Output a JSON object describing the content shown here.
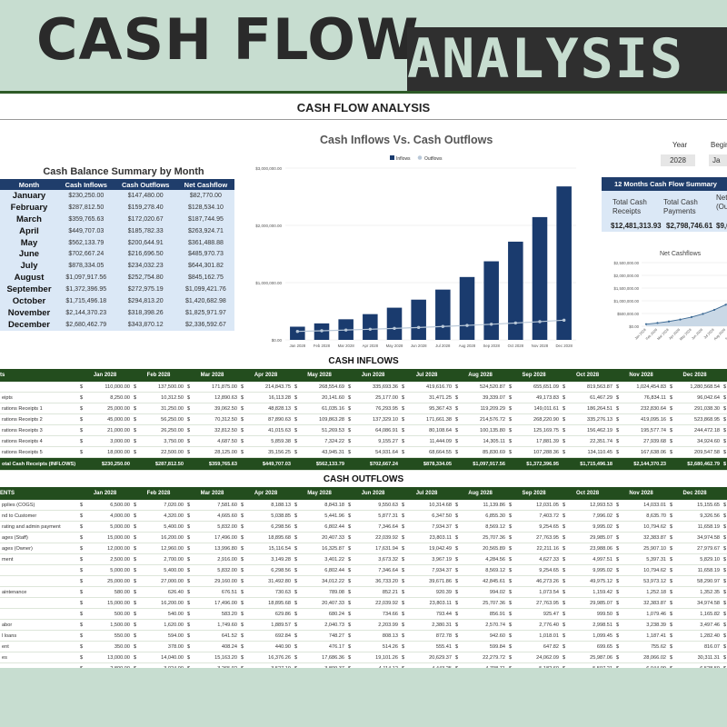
{
  "banner": {
    "title_part1": "CASH FLOW",
    "title_part2": "ANALYSIS"
  },
  "sheet": {
    "title": "CASH FLOW ANALYSIS"
  },
  "colors": {
    "banner_bg": "#c7ddd0",
    "dark_green": "#234d1e",
    "navy": "#1f3d6b",
    "light_blue": "#dbe8f6"
  },
  "summary": {
    "caption": "Cash Balance Summary by Month",
    "headers": [
      "Month",
      "Cash Inflows",
      "Cash Outflows",
      "Net Cashflow"
    ],
    "rows": [
      [
        "January",
        "$230,250.00",
        "$147,480.00",
        "$82,770.00"
      ],
      [
        "February",
        "$287,812.50",
        "$159,278.40",
        "$128,534.10"
      ],
      [
        "March",
        "$359,765.63",
        "$172,020.67",
        "$187,744.95"
      ],
      [
        "April",
        "$449,707.03",
        "$185,782.33",
        "$263,924.71"
      ],
      [
        "May",
        "$562,133.79",
        "$200,644.91",
        "$361,488.88"
      ],
      [
        "June",
        "$702,667.24",
        "$216,696.50",
        "$485,970.73"
      ],
      [
        "July",
        "$878,334.05",
        "$234,032.23",
        "$644,301.82"
      ],
      [
        "August",
        "$1,097,917.56",
        "$252,754.80",
        "$845,162.75"
      ],
      [
        "September",
        "$1,372,396.95",
        "$272,975.19",
        "$1,099,421.76"
      ],
      [
        "October",
        "$1,715,496.18",
        "$294,813.20",
        "$1,420,682.98"
      ],
      [
        "November",
        "$2,144,370.23",
        "$318,398.26",
        "$1,825,971.97"
      ],
      [
        "December",
        "$2,680,462.79",
        "$343,870.12",
        "$2,336,592.67"
      ]
    ]
  },
  "chart_data": [
    {
      "type": "bar",
      "title": "Cash Inflows Vs. Cash Outflows",
      "categories": [
        "Jan 2028",
        "Feb 2028",
        "Mar 2028",
        "Apr 2028",
        "May 2028",
        "Jun 2028",
        "Jul 2028",
        "Aug 2028",
        "Sep 2028",
        "Oct 2028",
        "Nov 2028",
        "Dec 2028"
      ],
      "series": [
        {
          "name": "Inflows",
          "type": "bar",
          "color": "#1a3b6e",
          "values": [
            230250.0,
            287812.5,
            359765.63,
            449707.03,
            562133.79,
            702667.24,
            878334.05,
            1097917.56,
            1372396.95,
            1715496.18,
            2144370.23,
            2680462.79
          ]
        },
        {
          "name": "Outflows",
          "type": "line",
          "color": "#b9c8d8",
          "values": [
            147480.0,
            159278.4,
            172020.67,
            185782.33,
            200644.91,
            216696.5,
            234032.23,
            252754.8,
            272975.19,
            294813.2,
            318398.26,
            343870.12
          ]
        }
      ],
      "yticks": [
        "$0.00",
        "$1,000,000.00",
        "$2,000,000.00",
        "$3,000,000.00"
      ],
      "ylim": [
        0,
        3000000
      ],
      "legend": "top-center",
      "grid": true
    },
    {
      "type": "area",
      "title": "Net Cashflows",
      "categories": [
        "Jan 2028",
        "Feb 2028",
        "Mar 2028",
        "Apr 2028",
        "May 2028",
        "Jun 2028",
        "Jul 2028",
        "Aug 2028",
        "Sep 2028",
        "Oct 2028",
        "Nov 2028",
        "Dec 2028"
      ],
      "values": [
        82770.0,
        128534.1,
        187744.95,
        263924.71,
        361488.88,
        485970.73,
        644301.82,
        845162.75,
        1099421.76,
        1420682.98,
        1825971.97,
        2336592.67
      ],
      "yticks": [
        "$0.00",
        "$500,000.00",
        "$1,000,000.00",
        "$1,500,000.00",
        "$2,000,000.00",
        "$2,500,000.00"
      ],
      "ylim": [
        0,
        2500000
      ],
      "grid": true
    }
  ],
  "controls": {
    "year_label": "Year",
    "year_value": "2028",
    "begin_label": "Begin",
    "begin_value": "Ja"
  },
  "panel": {
    "header": "12 Months Cash Flow Summary",
    "col1_label": "Total Cash Receipts",
    "col1_value": "$12,481,313.93",
    "col2_label": "Total Cash Payments",
    "col2_value": "$2,798,746.61",
    "col3_label": "Net In (Ou",
    "col3_value": "$9,6"
  },
  "inflows": {
    "title": "CASH INFLOWS",
    "header_first": "ts",
    "months": [
      "Jan 2028",
      "Feb 2028",
      "Mar 2028",
      "Apr 2028",
      "May 2028",
      "Jun 2028",
      "Jul 2028",
      "Aug 2028",
      "Sep 2028",
      "Oct 2028",
      "Nov 2028",
      "Dec 2028"
    ],
    "rows": [
      {
        "label": "",
        "vals": [
          "110,000.00",
          "137,500.00",
          "171,875.00",
          "214,843.75",
          "268,554.69",
          "335,693.36",
          "419,616.70",
          "524,520.87",
          "655,651.09",
          "819,563.87",
          "1,024,454.83",
          "1,280,568.54"
        ]
      },
      {
        "label": "eipts",
        "vals": [
          "8,250.00",
          "10,312.50",
          "12,890.63",
          "16,113.28",
          "20,141.60",
          "25,177.00",
          "31,471.25",
          "39,339.07",
          "49,173.83",
          "61,467.29",
          "76,834.11",
          "96,042.64"
        ]
      },
      {
        "label": "rations Receipts 1",
        "vals": [
          "25,000.00",
          "31,250.00",
          "39,062.50",
          "48,828.13",
          "61,035.16",
          "76,293.95",
          "95,367.43",
          "119,209.29",
          "149,011.61",
          "186,264.51",
          "232,830.64",
          "291,038.30"
        ]
      },
      {
        "label": "rations Receipts 2",
        "vals": [
          "45,000.00",
          "56,250.00",
          "70,312.50",
          "87,890.63",
          "109,863.28",
          "137,329.10",
          "171,661.38",
          "214,576.72",
          "268,220.90",
          "335,276.13",
          "419,095.16",
          "523,868.95"
        ]
      },
      {
        "label": "rations Receipts 3",
        "vals": [
          "21,000.00",
          "26,250.00",
          "32,812.50",
          "41,015.63",
          "51,269.53",
          "64,086.91",
          "80,108.64",
          "100,135.80",
          "125,169.75",
          "156,462.19",
          "195,577.74",
          "244,472.18"
        ]
      },
      {
        "label": "rations Receipts 4",
        "vals": [
          "3,000.00",
          "3,750.00",
          "4,687.50",
          "5,859.38",
          "7,324.22",
          "9,155.27",
          "11,444.09",
          "14,305.11",
          "17,881.39",
          "22,351.74",
          "27,939.68",
          "34,924.60"
        ]
      },
      {
        "label": "rations Receipts 5",
        "vals": [
          "18,000.00",
          "22,500.00",
          "28,125.00",
          "35,156.25",
          "43,945.31",
          "54,931.64",
          "68,664.55",
          "85,830.69",
          "107,288.36",
          "134,110.45",
          "167,638.06",
          "209,547.58"
        ]
      }
    ],
    "total": {
      "label": "otal Cash Receipts (INFLOWS)",
      "vals": [
        "$230,250.00",
        "$287,812.50",
        "$359,765.63",
        "$449,707.03",
        "$562,133.79",
        "$702,667.24",
        "$878,334.05",
        "$1,097,917.56",
        "$1,372,396.95",
        "$1,715,496.18",
        "$2,144,370.23",
        "$2,680,462.79"
      ]
    }
  },
  "outflows": {
    "title": "CASH OUTFLOWS",
    "header_first": "ENTS",
    "months": [
      "Jan 2028",
      "Feb 2028",
      "Mar 2028",
      "Apr 2028",
      "May 2028",
      "Jun 2028",
      "Jul 2028",
      "Aug 2028",
      "Sep 2028",
      "Oct 2028",
      "Nov 2028",
      "Dec 2028"
    ],
    "rows": [
      {
        "label": "pplies (COGS)",
        "vals": [
          "6,500.00",
          "7,020.00",
          "7,581.60",
          "8,188.13",
          "8,843.18",
          "9,550.63",
          "10,314.68",
          "11,139.86",
          "12,031.05",
          "12,993.53",
          "14,033.01",
          "15,155.65"
        ]
      },
      {
        "label": "nd to Customer",
        "vals": [
          "4,000.00",
          "4,320.00",
          "4,665.60",
          "5,038.85",
          "5,441.96",
          "5,877.31",
          "6,347.50",
          "6,855.30",
          "7,403.72",
          "7,996.02",
          "8,635.70",
          "9,326.56"
        ]
      },
      {
        "label": "rating and admin payment",
        "vals": [
          "5,000.00",
          "5,400.00",
          "5,832.00",
          "6,298.56",
          "6,802.44",
          "7,346.64",
          "7,934.37",
          "8,569.12",
          "9,254.65",
          "9,995.02",
          "10,794.62",
          "11,658.19"
        ]
      },
      {
        "label": "ages (Staff)",
        "vals": [
          "15,000.00",
          "16,200.00",
          "17,496.00",
          "18,895.68",
          "20,407.33",
          "22,039.92",
          "23,803.11",
          "25,707.36",
          "27,763.95",
          "29,985.07",
          "32,383.87",
          "34,974.58"
        ]
      },
      {
        "label": "ages (Owner)",
        "vals": [
          "12,000.00",
          "12,960.00",
          "13,996.80",
          "15,116.54",
          "16,325.87",
          "17,631.94",
          "19,042.49",
          "20,565.89",
          "22,211.16",
          "23,988.06",
          "25,907.10",
          "27,979.67"
        ]
      },
      {
        "label": "ment",
        "vals": [
          "2,500.00",
          "2,700.00",
          "2,916.00",
          "3,149.28",
          "3,401.22",
          "3,673.32",
          "3,967.19",
          "4,284.56",
          "4,627.33",
          "4,997.51",
          "5,397.31",
          "5,829.10"
        ]
      },
      {
        "label": "",
        "vals": [
          "5,000.00",
          "5,400.00",
          "5,832.00",
          "6,298.56",
          "6,802.44",
          "7,346.64",
          "7,934.37",
          "8,569.12",
          "9,254.65",
          "9,995.02",
          "10,794.62",
          "11,658.19"
        ]
      },
      {
        "label": "",
        "vals": [
          "25,000.00",
          "27,000.00",
          "29,160.00",
          "31,492.80",
          "34,012.22",
          "36,733.20",
          "39,671.86",
          "42,845.61",
          "46,273.26",
          "49,975.12",
          "53,973.12",
          "58,290.97"
        ]
      },
      {
        "label": "aintenance",
        "vals": [
          "580.00",
          "626.40",
          "676.51",
          "730.63",
          "789.08",
          "852.21",
          "920.39",
          "994.02",
          "1,073.54",
          "1,159.42",
          "1,252.18",
          "1,352.35"
        ]
      },
      {
        "label": "",
        "vals": [
          "15,000.00",
          "16,200.00",
          "17,496.00",
          "18,895.68",
          "20,407.33",
          "22,039.92",
          "23,803.11",
          "25,707.36",
          "27,763.95",
          "29,985.07",
          "32,383.87",
          "34,974.58"
        ]
      },
      {
        "label": "",
        "vals": [
          "500.00",
          "540.00",
          "583.20",
          "629.86",
          "680.24",
          "734.66",
          "793.44",
          "856.91",
          "925.47",
          "999.50",
          "1,079.46",
          "1,165.82"
        ]
      },
      {
        "label": "abor",
        "vals": [
          "1,500.00",
          "1,620.00",
          "1,749.60",
          "1,889.57",
          "2,040.73",
          "2,203.99",
          "2,380.31",
          "2,570.74",
          "2,776.40",
          "2,998.51",
          "3,238.39",
          "3,497.46"
        ]
      },
      {
        "label": "l loans",
        "vals": [
          "550.00",
          "594.00",
          "641.52",
          "692.84",
          "748.27",
          "808.13",
          "872.78",
          "942.60",
          "1,018.01",
          "1,099.45",
          "1,187.41",
          "1,282.40"
        ]
      },
      {
        "label": "ent",
        "vals": [
          "350.00",
          "378.00",
          "408.24",
          "440.90",
          "476.17",
          "514.26",
          "555.41",
          "599.84",
          "647.82",
          "699.65",
          "755.62",
          "816.07"
        ]
      },
      {
        "label": "es",
        "vals": [
          "13,000.00",
          "14,040.00",
          "15,163.20",
          "16,376.26",
          "17,686.36",
          "19,101.26",
          "20,629.37",
          "22,279.72",
          "24,062.09",
          "25,987.06",
          "28,066.02",
          "30,311.31"
        ]
      },
      {
        "label": "",
        "vals": [
          "2,800.00",
          "3,024.00",
          "3,265.92",
          "3,527.19",
          "3,809.37",
          "4,114.12",
          "4,443.25",
          "4,798.71",
          "5,182.60",
          "5,597.21",
          "6,044.99",
          "6,528.59"
        ]
      },
      {
        "label": "",
        "vals": [
          "1,500.00",
          "1,620.00",
          "1,749.60",
          "1,889.57",
          "2,040.73",
          "2,203.99",
          "2,380.31",
          "2,570.74",
          "2,776.40",
          "2,998.51",
          "3,238.39",
          "3,497.46"
        ]
      }
    ]
  }
}
